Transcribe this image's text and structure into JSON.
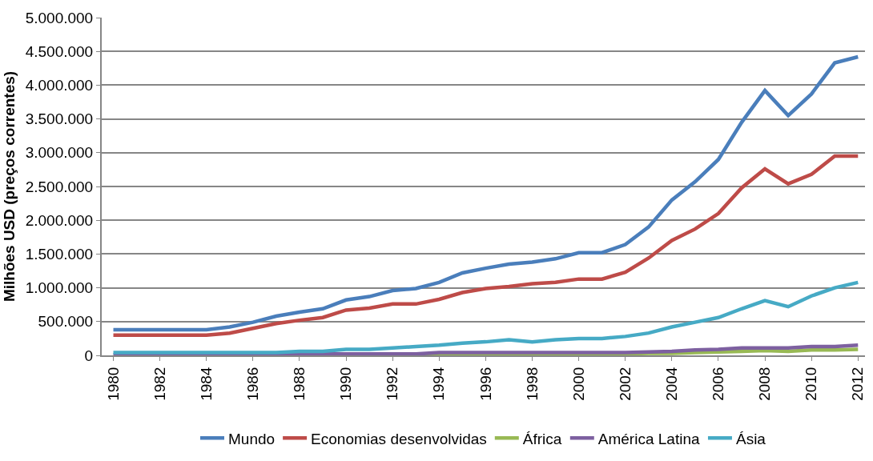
{
  "chart_data": {
    "type": "line",
    "ylabel": "Milhões USD (preços correntes)",
    "categories": [
      "1980",
      null,
      "1982",
      null,
      "1984",
      null,
      "1986",
      null,
      "1988",
      null,
      "1990",
      null,
      "1992",
      null,
      "1994",
      null,
      "1996",
      null,
      "1998",
      null,
      "2000",
      null,
      "2002",
      null,
      "2004",
      null,
      "2006",
      null,
      "2008",
      null,
      "2010",
      null,
      "2012"
    ],
    "series": [
      {
        "name": "Mundo",
        "color": "#4a7ebb",
        "values": [
          380000,
          380000,
          380000,
          380000,
          380000,
          420000,
          490000,
          580000,
          640000,
          690000,
          820000,
          870000,
          960000,
          990000,
          1080000,
          1220000,
          1290000,
          1350000,
          1380000,
          1430000,
          1520000,
          1520000,
          1640000,
          1900000,
          2300000,
          2570000,
          2900000,
          3450000,
          3920000,
          3550000,
          3870000,
          4330000,
          4420000
        ]
      },
      {
        "name": "Economias desenvolvidas",
        "color": "#be4b48",
        "values": [
          300000,
          300000,
          300000,
          300000,
          300000,
          330000,
          400000,
          470000,
          520000,
          560000,
          670000,
          700000,
          760000,
          760000,
          830000,
          930000,
          990000,
          1020000,
          1060000,
          1080000,
          1130000,
          1130000,
          1230000,
          1440000,
          1700000,
          1870000,
          2100000,
          2480000,
          2760000,
          2540000,
          2680000,
          2950000,
          2950000
        ]
      },
      {
        "name": "África",
        "color": "#98b954",
        "values": [
          null,
          null,
          null,
          null,
          null,
          null,
          null,
          null,
          null,
          null,
          null,
          null,
          null,
          10000,
          10000,
          20000,
          20000,
          20000,
          20000,
          20000,
          20000,
          20000,
          20000,
          30000,
          30000,
          40000,
          50000,
          60000,
          70000,
          60000,
          80000,
          80000,
          90000
        ]
      },
      {
        "name": "América Latina",
        "color": "#7d60a0",
        "values": [
          10000,
          10000,
          10000,
          10000,
          10000,
          10000,
          10000,
          10000,
          10000,
          20000,
          20000,
          20000,
          20000,
          20000,
          40000,
          40000,
          40000,
          40000,
          40000,
          40000,
          40000,
          40000,
          40000,
          50000,
          60000,
          80000,
          90000,
          110000,
          110000,
          110000,
          130000,
          130000,
          150000
        ]
      },
      {
        "name": "Ásia",
        "color": "#46aac5",
        "values": [
          40000,
          40000,
          40000,
          40000,
          40000,
          40000,
          40000,
          40000,
          60000,
          60000,
          90000,
          90000,
          110000,
          130000,
          150000,
          180000,
          200000,
          230000,
          200000,
          230000,
          250000,
          250000,
          280000,
          330000,
          420000,
          490000,
          560000,
          690000,
          810000,
          720000,
          880000,
          1000000,
          1080000
        ]
      }
    ],
    "ylim": [
      0,
      5000000
    ],
    "yticks": [
      {
        "value": 0,
        "label": "0"
      },
      {
        "value": 500000,
        "label": "500.000"
      },
      {
        "value": 1000000,
        "label": "1.000.000"
      },
      {
        "value": 1500000,
        "label": "1.500.000"
      },
      {
        "value": 2000000,
        "label": "2.000.000"
      },
      {
        "value": 2500000,
        "label": "2.500.000"
      },
      {
        "value": 3000000,
        "label": "3.000.000"
      },
      {
        "value": 3500000,
        "label": "3.500.000"
      },
      {
        "value": 4000000,
        "label": "4.000.000"
      },
      {
        "value": 4500000,
        "label": "4.500.000"
      },
      {
        "value": 5000000,
        "label": "5.000.000"
      }
    ],
    "grid": "y",
    "legend": "bottom",
    "marker": "none",
    "line_style": "solid"
  }
}
